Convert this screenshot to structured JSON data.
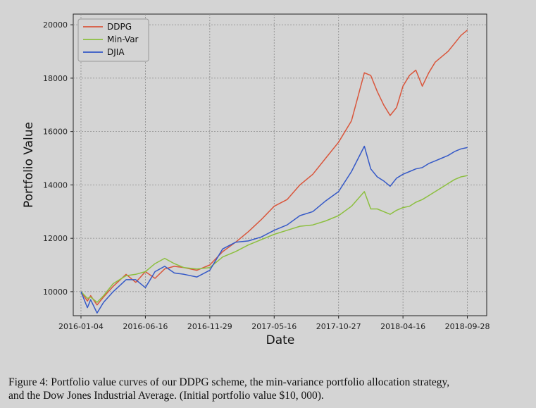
{
  "chart_data": {
    "type": "line",
    "xlabel": "Date",
    "ylabel": "Portfolio Value",
    "x_ticks": [
      "2016-01-04",
      "2016-06-16",
      "2016-11-29",
      "2017-05-16",
      "2017-10-27",
      "2018-04-16",
      "2018-09-28"
    ],
    "y_ticks": [
      10000,
      12000,
      14000,
      16000,
      18000,
      20000
    ],
    "xlim": [
      -0.12,
      6.3
    ],
    "ylim": [
      9100,
      20400
    ],
    "grid": true,
    "legend_position": "top-left",
    "x_unit": "index of x tick (0 = 2016-01-04, 6 = 2018-09-28)",
    "series": [
      {
        "name": "DDPG",
        "color": "#d9563c",
        "x": [
          0,
          0.1,
          0.15,
          0.25,
          0.35,
          0.5,
          0.7,
          0.85,
          1.0,
          1.15,
          1.3,
          1.45,
          1.6,
          1.8,
          2.0,
          2.2,
          2.4,
          2.6,
          2.8,
          3.0,
          3.2,
          3.4,
          3.6,
          3.8,
          4.0,
          4.2,
          4.4,
          4.5,
          4.6,
          4.7,
          4.8,
          4.9,
          5.0,
          5.1,
          5.2,
          5.3,
          5.4,
          5.5,
          5.6,
          5.7,
          5.8,
          5.9,
          6.0
        ],
        "y": [
          10000,
          9650,
          9850,
          9500,
          9800,
          10200,
          10650,
          10350,
          10750,
          10500,
          10850,
          10950,
          10900,
          10800,
          11000,
          11500,
          11850,
          12250,
          12700,
          13200,
          13450,
          14000,
          14400,
          15000,
          15600,
          16400,
          18200,
          18100,
          17500,
          17000,
          16600,
          16900,
          17700,
          18100,
          18300,
          17700,
          18200,
          18600,
          18800,
          19000,
          19300,
          19600,
          19800
        ]
      },
      {
        "name": "Min-Var",
        "color": "#8cbf3f",
        "x": [
          0,
          0.1,
          0.15,
          0.25,
          0.35,
          0.5,
          0.7,
          0.85,
          1.0,
          1.15,
          1.3,
          1.45,
          1.6,
          1.8,
          2.0,
          2.2,
          2.4,
          2.6,
          2.8,
          3.0,
          3.2,
          3.4,
          3.6,
          3.8,
          4.0,
          4.2,
          4.4,
          4.5,
          4.6,
          4.7,
          4.8,
          4.9,
          5.0,
          5.1,
          5.2,
          5.3,
          5.4,
          5.5,
          5.6,
          5.7,
          5.8,
          5.9,
          6.0
        ],
        "y": [
          10000,
          9750,
          9800,
          9600,
          9850,
          10300,
          10600,
          10650,
          10750,
          11050,
          11250,
          11050,
          10900,
          10850,
          10900,
          11300,
          11500,
          11750,
          11950,
          12150,
          12300,
          12450,
          12500,
          12650,
          12850,
          13200,
          13750,
          13100,
          13100,
          13000,
          12900,
          13050,
          13150,
          13200,
          13350,
          13450,
          13600,
          13750,
          13900,
          14050,
          14200,
          14300,
          14350
        ]
      },
      {
        "name": "DJIA",
        "color": "#3559c7",
        "x": [
          0,
          0.1,
          0.15,
          0.25,
          0.35,
          0.5,
          0.7,
          0.85,
          1.0,
          1.15,
          1.3,
          1.45,
          1.6,
          1.8,
          2.0,
          2.2,
          2.4,
          2.6,
          2.8,
          3.0,
          3.2,
          3.4,
          3.6,
          3.8,
          4.0,
          4.2,
          4.4,
          4.5,
          4.6,
          4.7,
          4.8,
          4.9,
          5.0,
          5.1,
          5.2,
          5.3,
          5.4,
          5.5,
          5.6,
          5.7,
          5.8,
          5.9,
          6.0
        ],
        "y": [
          10000,
          9400,
          9700,
          9200,
          9600,
          10000,
          10450,
          10450,
          10150,
          10750,
          10950,
          10700,
          10650,
          10550,
          10800,
          11600,
          11850,
          11900,
          12050,
          12300,
          12500,
          12850,
          13000,
          13400,
          13750,
          14500,
          15450,
          14600,
          14300,
          14150,
          13950,
          14250,
          14400,
          14500,
          14600,
          14650,
          14800,
          14900,
          15000,
          15100,
          15250,
          15350,
          15400
        ]
      }
    ]
  },
  "caption": {
    "line1": "Figure 4: Portfolio value curves of our DDPG scheme, the min-variance portfolio allocation strategy,",
    "line2": "and the Dow Jones Industrial Average. (Initial portfolio value $10, 000)."
  }
}
